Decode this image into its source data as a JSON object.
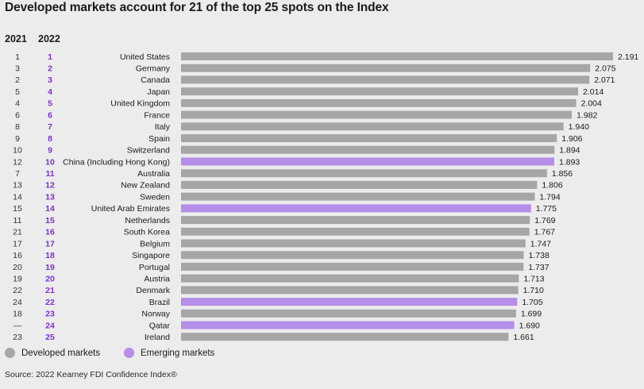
{
  "title": "Developed markets account for 21 of the top 25 spots on the Index",
  "column_headers": {
    "prev_year": "2021",
    "curr_year": "2022"
  },
  "legend": [
    {
      "label": "Developed markets",
      "color": "#a6a6a6"
    },
    {
      "label": "Emerging markets",
      "color": "#b48ee8"
    }
  ],
  "source": "Source: 2022 Kearney FDI Confidence Index®",
  "colors": {
    "developed": "#a6a6a6",
    "emerging": "#b48ee8",
    "rank2022": "#7a2fd6",
    "rank2021": "#333333"
  },
  "chart_data": {
    "type": "bar",
    "orientation": "horizontal",
    "xlim": [
      0,
      2.191
    ],
    "grid": false,
    "legend_placement": "bottom-left",
    "categories": [
      "United States",
      "Germany",
      "Canada",
      "Japan",
      "United Kingdom",
      "France",
      "Italy",
      "Spain",
      "Switzerland",
      "China (Including Hong Kong)",
      "Australia",
      "New Zealand",
      "Sweden",
      "United Arab Emirates",
      "Netherlands",
      "South Korea",
      "Belgium",
      "Singapore",
      "Portugal",
      "Austria",
      "Denmark",
      "Brazil",
      "Norway",
      "Qatar",
      "Ireland"
    ],
    "rank_2021": [
      "1",
      "3",
      "2",
      "5",
      "4",
      "6",
      "8",
      "9",
      "10",
      "12",
      "7",
      "13",
      "14",
      "15",
      "11",
      "21",
      "17",
      "16",
      "20",
      "19",
      "22",
      "24",
      "18",
      "—",
      "23"
    ],
    "rank_2022": [
      "1",
      "2",
      "3",
      "4",
      "5",
      "6",
      "7",
      "8",
      "9",
      "10",
      "11",
      "12",
      "13",
      "14",
      "15",
      "16",
      "17",
      "18",
      "19",
      "20",
      "21",
      "22",
      "23",
      "24",
      "25"
    ],
    "values": [
      2.191,
      2.075,
      2.071,
      2.014,
      2.004,
      1.982,
      1.94,
      1.906,
      1.894,
      1.893,
      1.856,
      1.806,
      1.794,
      1.775,
      1.769,
      1.767,
      1.747,
      1.738,
      1.737,
      1.713,
      1.71,
      1.705,
      1.699,
      1.69,
      1.661
    ],
    "value_labels": [
      "2.191",
      "2.075",
      "2.071",
      "2.014",
      "2.004",
      "1.982",
      "1.940",
      "1.906",
      "1.894",
      "1.893",
      "1.856",
      "1.806",
      "1.794",
      "1.775",
      "1.769",
      "1.767",
      "1.747",
      "1.738",
      "1.737",
      "1.713",
      "1.710",
      "1.705",
      "1.699",
      "1.690",
      "1.661"
    ],
    "market_type": [
      "developed",
      "developed",
      "developed",
      "developed",
      "developed",
      "developed",
      "developed",
      "developed",
      "developed",
      "emerging",
      "developed",
      "developed",
      "developed",
      "emerging",
      "developed",
      "developed",
      "developed",
      "developed",
      "developed",
      "developed",
      "developed",
      "emerging",
      "developed",
      "emerging",
      "developed"
    ]
  }
}
